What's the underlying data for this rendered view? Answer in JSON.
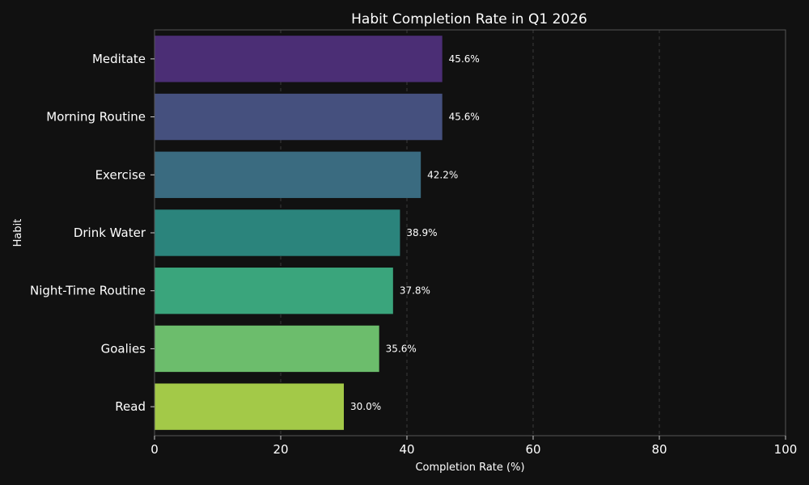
{
  "chart_data": {
    "type": "bar",
    "orientation": "horizontal",
    "title": "Habit Completion Rate in Q1 2026",
    "xlabel": "Completion Rate (%)",
    "ylabel": "Habit",
    "categories": [
      "Meditate",
      "Morning Routine",
      "Exercise",
      "Drink Water",
      "Night-Time Routine",
      "Goalies",
      "Read"
    ],
    "values": [
      45.6,
      45.6,
      42.2,
      38.9,
      37.8,
      35.6,
      30.0
    ],
    "data_labels": [
      "45.6%",
      "45.6%",
      "42.2%",
      "38.9%",
      "37.8%",
      "35.6%",
      "30.0%"
    ],
    "colors": [
      "#4b2e75",
      "#45507e",
      "#3a6b80",
      "#2b847c",
      "#3aa57c",
      "#6cbd6c",
      "#a3c948"
    ],
    "xlim": [
      0,
      100
    ],
    "xticks": [
      0,
      20,
      40,
      60,
      80,
      100
    ],
    "grid": "vertical dashed",
    "background": "#111111",
    "frame_color": "#555555"
  }
}
